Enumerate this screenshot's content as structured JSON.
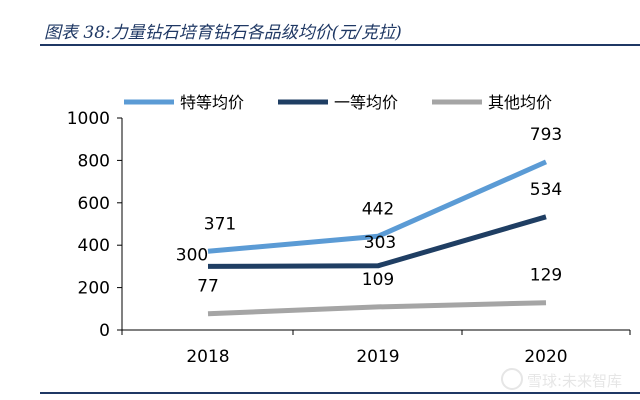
{
  "title": "图表 38:力量钻石培育钻石各品级均价(元/克拉)",
  "watermark": "雪球:未来智库",
  "colors": {
    "title": "#1f3864",
    "rule": "#1f3864"
  },
  "chart_data": {
    "type": "line",
    "x": [
      "2018",
      "2019",
      "2020"
    ],
    "ylim": [
      0,
      1000
    ],
    "yticks": [
      0,
      200,
      400,
      600,
      800,
      1000
    ],
    "grid": false,
    "legend_position": "top",
    "series": [
      {
        "name": "特等均价",
        "values": [
          371,
          442,
          793
        ],
        "labels": [
          "371",
          "442",
          "793"
        ],
        "color": "#5b9bd5"
      },
      {
        "name": "一等均价",
        "values": [
          300,
          303,
          534
        ],
        "labels": [
          "300",
          "303",
          "534"
        ],
        "color": "#1f3e63"
      },
      {
        "name": "其他均价",
        "values": [
          77,
          109,
          129
        ],
        "labels": [
          "77",
          "109",
          "129"
        ],
        "color": "#a5a5a5"
      }
    ]
  }
}
